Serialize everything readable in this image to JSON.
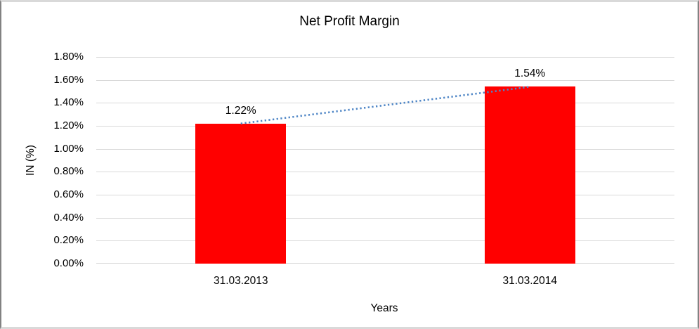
{
  "frame": {
    "background": "#FFFFFF",
    "border_top_bottom_color": "#D9D9D9",
    "border_side_color": "#828282"
  },
  "chart_data": {
    "type": "bar",
    "title": "Net Profit Margin",
    "xlabel": "Years",
    "ylabel": "IN (%)",
    "categories": [
      "31.03.2013",
      "31.03.2014"
    ],
    "series": [
      {
        "name": "Net Profit Margin",
        "values": [
          1.22,
          1.54
        ],
        "color": "#FF0000"
      }
    ],
    "data_labels": [
      "1.22%",
      "1.54%"
    ],
    "ytick_labels": [
      "0.00%",
      "0.20%",
      "0.40%",
      "0.60%",
      "0.80%",
      "1.00%",
      "1.20%",
      "1.40%",
      "1.60%",
      "1.80%"
    ],
    "ytick_values": [
      0,
      0.2,
      0.4,
      0.6,
      0.8,
      1.0,
      1.2,
      1.4,
      1.6,
      1.8
    ],
    "ylim": [
      0,
      1.8
    ],
    "grid": true,
    "legend": "none",
    "gridline_color": "#D9D9D9",
    "trendline": {
      "type": "linear",
      "style": "dotted",
      "color": "#4F86C6",
      "from": [
        0,
        1.22
      ],
      "to": [
        1,
        1.54
      ]
    }
  }
}
